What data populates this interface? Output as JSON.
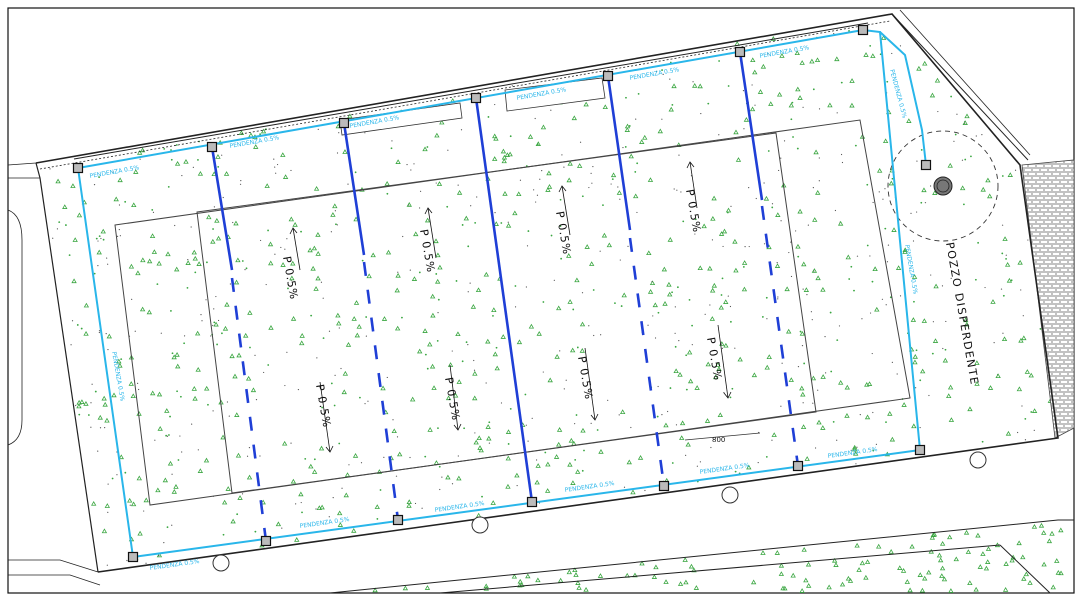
{
  "colors": {
    "background": "#ffffff",
    "grass": "#3aa641",
    "drain_pipe": "#1f3fd6",
    "perimeter_pipe": "#29b6ea",
    "outline": "#222222",
    "paving": "#c8c8c8"
  },
  "labels": {
    "slope_main": "P 0.5%",
    "slope_perimeter": "PENDENZA 0.5%",
    "well": "POZZO DISPERDENTE",
    "dimension": "800"
  }
}
